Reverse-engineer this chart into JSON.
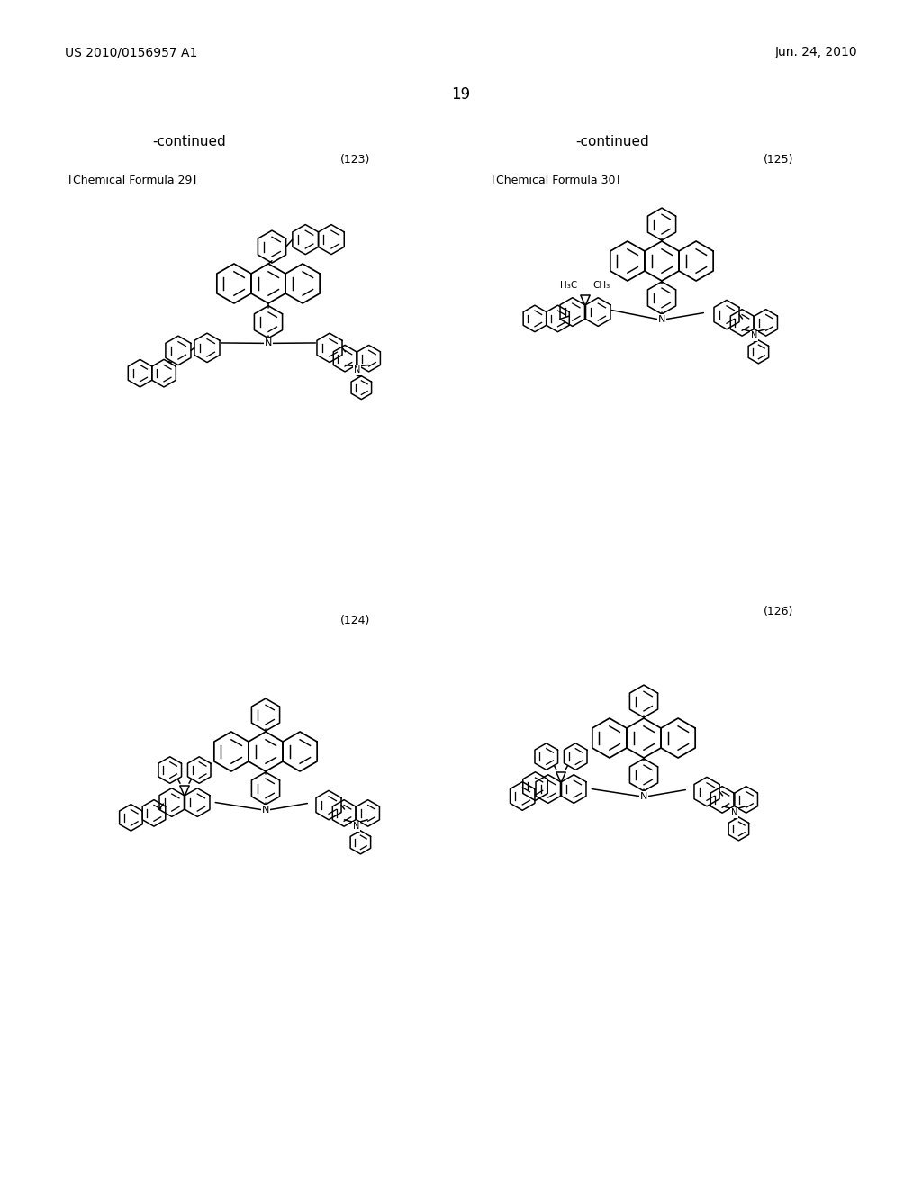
{
  "page_header_left": "US 2010/0156957 A1",
  "page_header_right": "Jun. 24, 2010",
  "page_number": "19",
  "background_color": "#ffffff",
  "text_color": "#000000",
  "continued_label_1": "-continued",
  "continued_label_2": "-continued",
  "compound_number_1": "(123)",
  "compound_number_2": "(125)",
  "compound_number_3": "(124)",
  "compound_number_4": "(126)",
  "formula_label_1": "[Chemical Formula 29]",
  "formula_label_2": "[Chemical Formula 30]",
  "font_size_header": 10,
  "font_size_number": 9,
  "font_size_label": 9,
  "font_size_continued": 11,
  "font_size_page": 12
}
